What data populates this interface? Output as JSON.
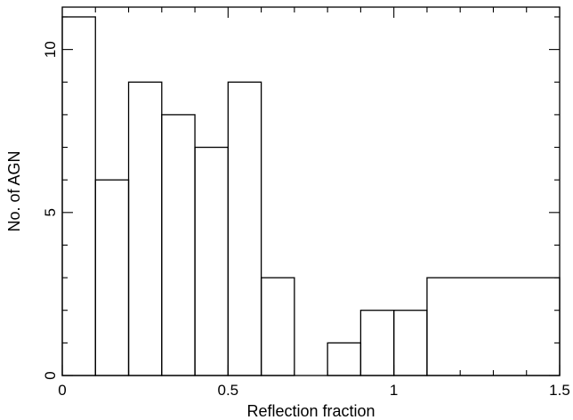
{
  "chart_data": {
    "type": "bar",
    "histogram": true,
    "title": "",
    "xlabel": "Reflection fraction",
    "ylabel": "No. of AGN",
    "xlim": [
      0,
      1.5
    ],
    "ylim": [
      0,
      11.3
    ],
    "grid": false,
    "bins": [
      {
        "x0": 0.0,
        "x1": 0.1,
        "value": 11
      },
      {
        "x0": 0.1,
        "x1": 0.2,
        "value": 6
      },
      {
        "x0": 0.2,
        "x1": 0.3,
        "value": 9
      },
      {
        "x0": 0.3,
        "x1": 0.4,
        "value": 8
      },
      {
        "x0": 0.4,
        "x1": 0.5,
        "value": 7
      },
      {
        "x0": 0.5,
        "x1": 0.6,
        "value": 9
      },
      {
        "x0": 0.6,
        "x1": 0.7,
        "value": 3
      },
      {
        "x0": 0.7,
        "x1": 0.8,
        "value": 0
      },
      {
        "x0": 0.8,
        "x1": 0.9,
        "value": 1
      },
      {
        "x0": 0.9,
        "x1": 1.0,
        "value": 2
      },
      {
        "x0": 1.0,
        "x1": 1.1,
        "value": 2
      },
      {
        "x0": 1.1,
        "x1": 1.5,
        "value": 3
      }
    ],
    "x_ticks": [
      {
        "value": 0,
        "label": "0"
      },
      {
        "value": 0.5,
        "label": "0.5"
      },
      {
        "value": 1,
        "label": "1"
      },
      {
        "value": 1.5,
        "label": "1.5"
      }
    ],
    "y_ticks": [
      {
        "value": 0,
        "label": "0"
      },
      {
        "value": 5,
        "label": "5"
      },
      {
        "value": 10,
        "label": "10"
      }
    ],
    "x_minor_step": 0.1,
    "y_minor_step": 1
  }
}
